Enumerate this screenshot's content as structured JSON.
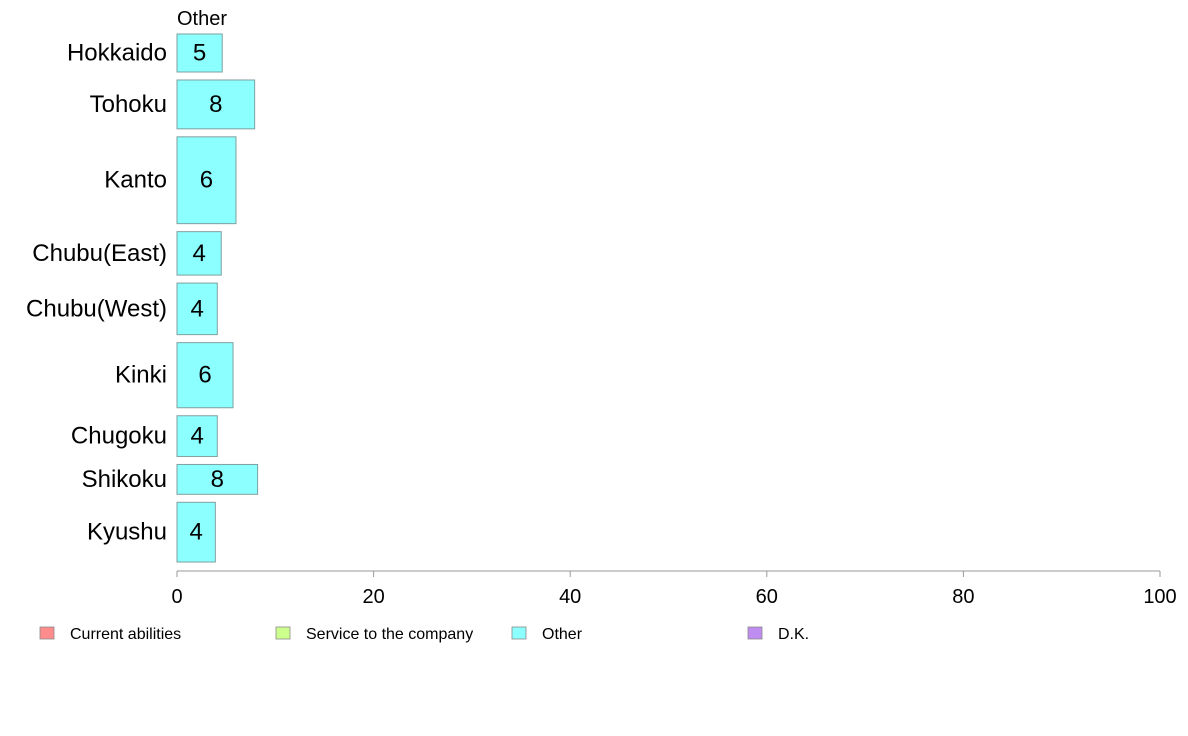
{
  "chart_data": {
    "type": "bar",
    "orientation": "horizontal",
    "title": "",
    "xlabel": "",
    "ylabel": "",
    "panel_title": "Other",
    "categories": [
      "Hokkaido",
      "Tohoku",
      "Kanto",
      "Chubu(East)",
      "Chubu(West)",
      "Kinki",
      "Chugoku",
      "Shikoku",
      "Kyushu"
    ],
    "category_weights": [
      0.7,
      0.9,
      1.6,
      0.8,
      0.95,
      1.2,
      0.75,
      0.55,
      1.1
    ],
    "values": [
      4.6,
      7.9,
      6.0,
      4.5,
      4.1,
      5.7,
      4.1,
      8.2,
      3.9
    ],
    "value_labels": [
      "5",
      "8",
      "6",
      "4",
      "4",
      "6",
      "4",
      "8",
      "4"
    ],
    "xlim": [
      0,
      100
    ],
    "xticks": [
      "0",
      "20",
      "40",
      "60",
      "80",
      "100"
    ],
    "xtick_values": [
      0,
      20,
      40,
      60,
      80,
      100
    ],
    "grid": false,
    "legend_position": "bottom",
    "legend": [
      {
        "label": "Current abilities",
        "color": "#ff8c8c"
      },
      {
        "label": "Service to the company",
        "color": "#ccff8c"
      },
      {
        "label": "Other",
        "color": "#8cffff"
      },
      {
        "label": "D.K.",
        "color": "#bf8cf2"
      }
    ],
    "bar_color": "#8cffff",
    "bar_stroke": "#7f9f9f",
    "axis_color": "#999999"
  }
}
